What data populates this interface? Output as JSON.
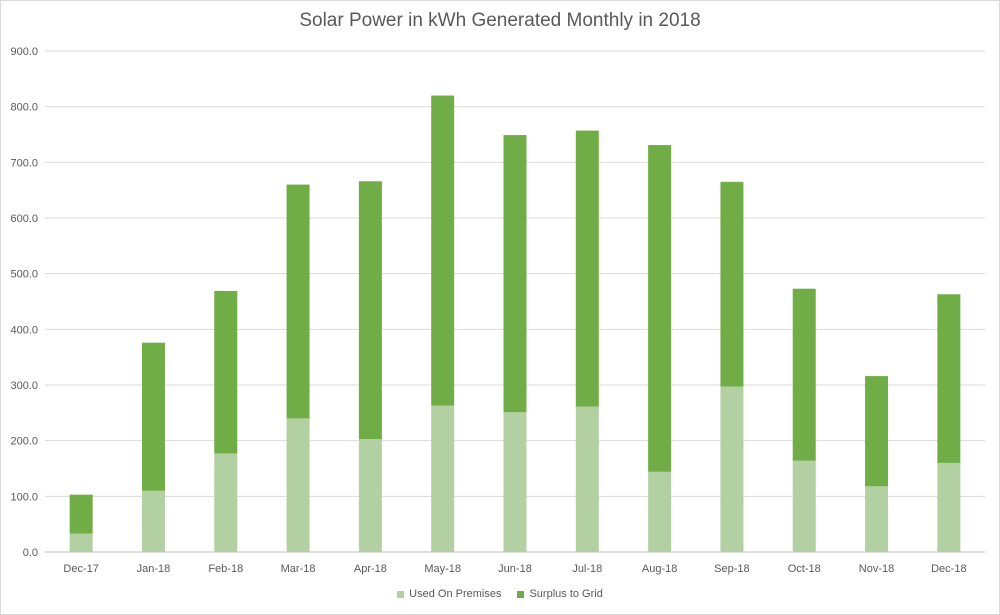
{
  "chart_data": {
    "type": "bar",
    "stacked": true,
    "title": "Solar Power in kWh Generated Monthly in 2018",
    "xlabel": "",
    "ylabel": "",
    "ylim": [
      0,
      900
    ],
    "yticks": [
      "0.0",
      "100.0",
      "200.0",
      "300.0",
      "400.0",
      "500.0",
      "600.0",
      "700.0",
      "800.0",
      "900.0"
    ],
    "grid": true,
    "legend_position": "bottom",
    "categories": [
      "Dec-17",
      "Jan-18",
      "Feb-18",
      "Mar-18",
      "Apr-18",
      "May-18",
      "Jun-18",
      "Jul-18",
      "Aug-18",
      "Sep-18",
      "Oct-18",
      "Nov-18",
      "Dec-18"
    ],
    "series": [
      {
        "name": "Used On Premises",
        "color": "#b3d0a3",
        "values": [
          33,
          110,
          177,
          240,
          203,
          263,
          251,
          261,
          144,
          297,
          164,
          118,
          160
        ]
      },
      {
        "name": "Surplus to Grid",
        "color": "#70ad47",
        "values": [
          70,
          266,
          292,
          420,
          463,
          557,
          498,
          496,
          587,
          368,
          309,
          198,
          303
        ]
      }
    ]
  }
}
